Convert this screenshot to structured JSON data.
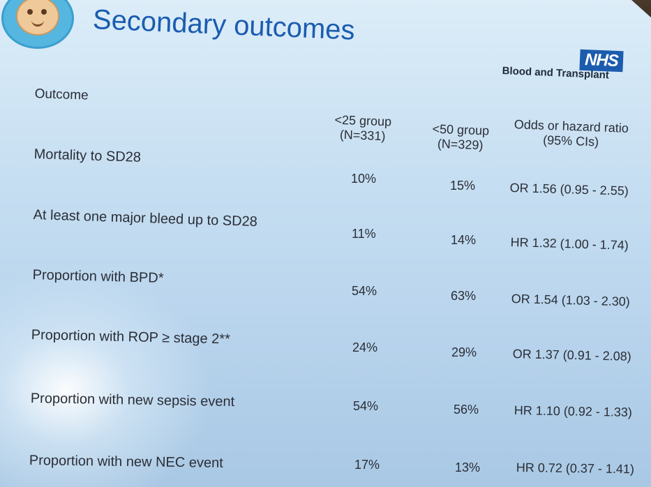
{
  "slide": {
    "title": "Secondary outcomes",
    "logo": {
      "icon": "baby-face-icon",
      "color": "#55b6e0"
    },
    "org_badge": "NHS",
    "org_name": "Blood and Transplant",
    "accent": "#1a5cb0"
  },
  "table": {
    "outcome_header": "Outcome",
    "columns": [
      {
        "line1": "<25 group",
        "line2": "(N=331)"
      },
      {
        "line1": "<50 group",
        "line2": "(N=329)"
      },
      {
        "line1": "Odds or hazard ratio",
        "line2": "(95% CIs)"
      }
    ],
    "rows": [
      {
        "label": "Mortality to SD28",
        "g25": "10%",
        "g50": "15%",
        "ratio": "OR 1.56 (0.95 - 2.55)"
      },
      {
        "label": "At least one major bleed up to SD28",
        "g25": "11%",
        "g50": "14%",
        "ratio": "HR 1.32 (1.00 - 1.74)"
      },
      {
        "label": "Proportion with BPD*",
        "g25": "54%",
        "g50": "63%",
        "ratio": "OR 1.54 (1.03 - 2.30)"
      },
      {
        "label": "Proportion with ROP ≥ stage 2**",
        "g25": "24%",
        "g50": "29%",
        "ratio": "OR 1.37 (0.91 - 2.08)"
      },
      {
        "label": "Proportion with new sepsis event",
        "g25": "54%",
        "g50": "56%",
        "ratio": "HR 1.10 (0.92 - 1.33)"
      },
      {
        "label": "Proportion with new NEC event",
        "g25": "17%",
        "g50": "13%",
        "ratio": "HR 0.72 (0.37 - 1.41)"
      }
    ]
  }
}
